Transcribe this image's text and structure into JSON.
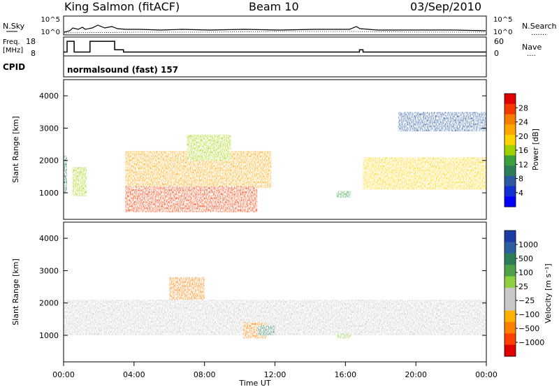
{
  "header": {
    "station": "King Salmon (fitACF)",
    "beam": "Beam 10",
    "date": "03/Sep/2010"
  },
  "noise_panel": {
    "left_label": "N.Sky",
    "left_ticks": [
      "10^5",
      "10^0"
    ],
    "right_ticks": [
      "10^5",
      "10^0"
    ],
    "right_label": "N.Search",
    "right_dots": "......."
  },
  "freq_panel": {
    "left_label_1": "Freq.",
    "left_label_2": "[MHz]",
    "left_ticks": [
      "18",
      "8"
    ],
    "right_ticks": [
      "60",
      "0"
    ],
    "right_label": "Nave",
    "right_dots": "...."
  },
  "cpid_panel": {
    "label": "CPID",
    "value": "normalsound (fast) 157"
  },
  "power_panel": {
    "ylabel": "Slant Range [km]",
    "yticks": [
      "4000",
      "3000",
      "2000",
      "1000"
    ],
    "colorbar_label": "Power [dB]",
    "colorbar_ticks": [
      "28",
      "24",
      "20",
      "16",
      "12",
      "8",
      "4"
    ],
    "colorbar_colors": [
      "#e00000",
      "#f23a00",
      "#f77d00",
      "#ffa500",
      "#ffd200",
      "#a0d200",
      "#3ca03c",
      "#2e7d5a",
      "#2c5aa0",
      "#1530d0",
      "#0000ff"
    ]
  },
  "velocity_panel": {
    "ylabel": "Slant Range [km]",
    "yticks": [
      "4000",
      "3000",
      "2000",
      "1000"
    ],
    "colorbar_label": "Velocity [m s⁻¹]",
    "colorbar_ticks": [
      "1000",
      "500",
      "100",
      "25",
      "−25",
      "−100",
      "−500",
      "−1000"
    ],
    "colorbar_colors": [
      "#1c3ca8",
      "#2c5fa0",
      "#2e7d5a",
      "#4ea04a",
      "#8cd040",
      "#c8c8c8",
      "#c8c8c8",
      "#ffb000",
      "#ff8000",
      "#ff4000",
      "#e00000"
    ]
  },
  "xaxis": {
    "ticks": [
      "00:00",
      "04:00",
      "08:00",
      "12:00",
      "16:00",
      "20:00",
      "00:00"
    ],
    "label": "Time UT"
  },
  "chart_data": {
    "type": "heatmap",
    "title": "King Salmon (fitACF) Beam 10 03/Sep/2010",
    "xlabel": "Time UT",
    "ylabel": "Slant Range [km]",
    "xlim_hours": [
      0,
      24
    ],
    "ylim_km": [
      180,
      4500
    ],
    "cpid": "normalsound (fast) 157",
    "power_colorbar": {
      "label": "Power [dB]",
      "range": [
        0,
        30
      ],
      "ticks": [
        4,
        8,
        12,
        16,
        20,
        24,
        28
      ]
    },
    "velocity_colorbar": {
      "label": "Velocity [m s-1]",
      "ticks": [
        1000,
        500,
        100,
        25,
        -25,
        -100,
        -500,
        -1000
      ]
    },
    "frequency_mhz_segments": [
      {
        "t0": 0.0,
        "t1": 0.2,
        "freq": 10.5
      },
      {
        "t0": 0.2,
        "t1": 0.6,
        "freq": 17.5
      },
      {
        "t0": 0.6,
        "t1": 1.5,
        "freq": 10.5
      },
      {
        "t0": 1.5,
        "t1": 2.9,
        "freq": 17.5
      },
      {
        "t0": 2.9,
        "t1": 3.4,
        "freq": 12.0
      },
      {
        "t0": 3.4,
        "t1": 16.8,
        "freq": 10.5
      },
      {
        "t0": 16.8,
        "t1": 17.0,
        "freq": 12.0
      },
      {
        "t0": 17.0,
        "t1": 24.0,
        "freq": 10.5
      }
    ],
    "power_regions": [
      {
        "t0": 0.0,
        "t1": 0.2,
        "r0": 1000,
        "r1": 2150,
        "power": 10
      },
      {
        "t0": 0.5,
        "t1": 1.3,
        "r0": 900,
        "r1": 1800,
        "power": 14
      },
      {
        "t0": 3.5,
        "t1": 11.8,
        "r0": 1150,
        "r1": 2300,
        "power": 20
      },
      {
        "t0": 3.5,
        "t1": 11.0,
        "r0": 400,
        "r1": 1200,
        "power": 26
      },
      {
        "t0": 7.0,
        "t1": 9.5,
        "r0": 2000,
        "r1": 2800,
        "power": 14
      },
      {
        "t0": 17.0,
        "t1": 24.0,
        "r0": 1100,
        "r1": 2100,
        "power": 18
      },
      {
        "t0": 15.5,
        "t1": 16.3,
        "r0": 850,
        "r1": 1050,
        "power": 12
      },
      {
        "t0": 19.0,
        "t1": 24.0,
        "r0": 2900,
        "r1": 3500,
        "power": 6
      }
    ],
    "velocity_regions": [
      {
        "t0": 0.0,
        "t1": 24.0,
        "r0": 1000,
        "r1": 2100,
        "velocity": 0
      },
      {
        "t0": 6.0,
        "t1": 8.0,
        "r0": 2100,
        "r1": 2800,
        "velocity": -150
      },
      {
        "t0": 10.2,
        "t1": 11.5,
        "r0": 900,
        "r1": 1400,
        "velocity": -300
      },
      {
        "t0": 11.0,
        "t1": 12.0,
        "r0": 1000,
        "r1": 1300,
        "velocity": 150
      },
      {
        "t0": 15.5,
        "t1": 16.3,
        "r0": 900,
        "r1": 1050,
        "velocity": 60
      }
    ]
  }
}
